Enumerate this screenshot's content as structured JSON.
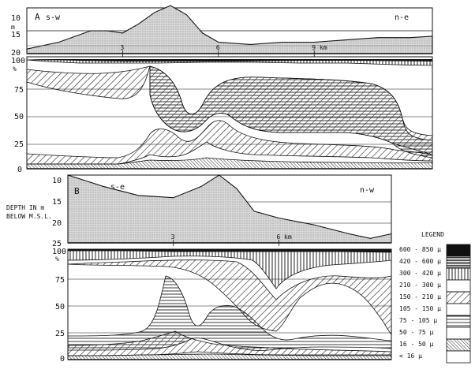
{
  "figure": {
    "side_depth_note": "DEPTH IN m BELOW M.S.L."
  },
  "chart_data": [
    {
      "type": "area",
      "panel": "A",
      "subtitle_left": "s-w",
      "subtitle_right": "n-e",
      "depth_axis_unit": "m",
      "depth_ticks": [
        10,
        15,
        20
      ],
      "depth_range": [
        20,
        10
      ],
      "distance_ticks": [
        {
          "value": 3,
          "label": "3"
        },
        {
          "value": 6,
          "label": "6"
        },
        {
          "value": 9,
          "label": "9 km"
        }
      ],
      "distance_range": [
        0,
        12.7
      ],
      "profile": {
        "x": [
          0,
          1,
          2,
          2.5,
          3,
          3.5,
          4,
          4.5,
          5,
          5.5,
          6,
          7,
          8,
          9,
          10,
          11,
          12,
          12.7
        ],
        "y": [
          19,
          17.5,
          15,
          15,
          15.5,
          13.5,
          11,
          9.5,
          11.5,
          15.5,
          17.5,
          18,
          17.5,
          17.5,
          17,
          16.5,
          16.5,
          16.2
        ]
      },
      "percent_axis_unit": "%",
      "percent_ticks": [
        0,
        25,
        50,
        75,
        100
      ],
      "percent_range": [
        0,
        100
      ]
    },
    {
      "type": "area",
      "panel": "B",
      "subtitle_left": "s-e",
      "subtitle_right": "n-w",
      "depth_ticks": [
        10,
        15,
        20,
        25
      ],
      "depth_range": [
        25,
        10
      ],
      "distance_ticks": [
        {
          "value": 3,
          "label": "3"
        },
        {
          "value": 6,
          "label": "6 km"
        }
      ],
      "distance_range": [
        0,
        9.2
      ],
      "profile": {
        "x": [
          0,
          1,
          2,
          3,
          3.8,
          4.3,
          4.8,
          5.3,
          6,
          7,
          8,
          8.6,
          9.2
        ],
        "y": [
          10,
          12.5,
          14.5,
          15,
          12.5,
          10,
          13,
          18,
          19.5,
          21,
          23,
          24,
          23
        ]
      },
      "percent_ticks": [
        0,
        25,
        50,
        75,
        100
      ],
      "percent_range": [
        0,
        100
      ]
    }
  ],
  "legend": {
    "title": "LEGEND",
    "items": [
      {
        "label": "600 - 850 μ",
        "pattern": "solid-black"
      },
      {
        "label": "420 - 600 μ",
        "pattern": "dense-horizontal"
      },
      {
        "label": "300 - 420 μ",
        "pattern": "vertical-lines"
      },
      {
        "label": "210 - 300 μ",
        "pattern": "blank"
      },
      {
        "label": "150 - 210 μ",
        "pattern": "diagonal-lines"
      },
      {
        "label": "105 - 150 μ",
        "pattern": "blank"
      },
      {
        "label": "75 - 105 μ",
        "pattern": "horizontal-lines"
      },
      {
        "label": "50 - 75 μ",
        "pattern": "blank"
      },
      {
        "label": "16 - 50 μ",
        "pattern": "diagonal-cross"
      },
      {
        "label": "< 16 μ",
        "pattern": "blank"
      }
    ]
  }
}
